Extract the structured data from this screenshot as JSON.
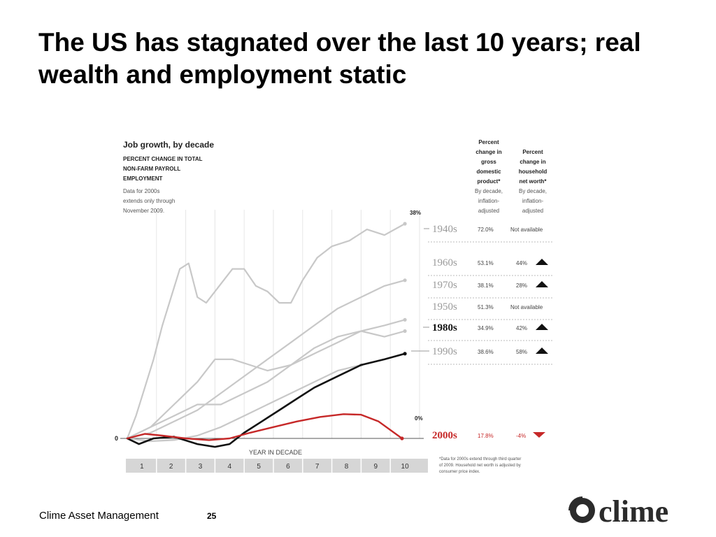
{
  "slide": {
    "title": "The US has stagnated over the last 10 years; real wealth and employment static",
    "footer": "Clime Asset Management",
    "page_number": "25",
    "logo_text": "clime"
  },
  "chart_data": {
    "type": "line",
    "title": "Job growth, by decade",
    "subtitle_lines": [
      "PERCENT CHANGE IN TOTAL",
      "NON-FARM PAYROLL",
      "EMPLOYMENT"
    ],
    "note_lines": [
      "Data for 2000s",
      "extends only through",
      "November 2009."
    ],
    "xlabel": "YEAR IN DECADE",
    "x_ticks": [
      "1",
      "2",
      "3",
      "4",
      "5",
      "6",
      "7",
      "8",
      "9",
      "10"
    ],
    "y_zero_label": "0",
    "ylim": [
      -2,
      42
    ],
    "end_labels": {
      "top": "38%",
      "bottom": "0%"
    },
    "column_headers": {
      "gdp": [
        "Percent",
        "change in",
        "gross",
        "domestic",
        "product*"
      ],
      "gdp_sub": [
        "By decade,",
        "inflation-",
        "adjusted"
      ],
      "networth": [
        "Percent",
        "change in",
        "household",
        "net worth*"
      ],
      "networth_sub": [
        "By decade,",
        "inflation-",
        "adjusted"
      ]
    },
    "footnote_lines": [
      "*Data for 2000s extend through third quarter",
      "of 2009. Household net worth is adjusted by",
      "consumer price index."
    ],
    "colors": {
      "gray": "#c8c8c8",
      "black": "#111111",
      "red": "#c62828",
      "label_gray": "#9a9a9a"
    },
    "series": [
      {
        "name": "1940s",
        "gdp": "72.0%",
        "networth": "Not available",
        "trend": "none",
        "values": [
          0,
          4,
          9,
          14,
          20,
          25,
          30,
          31,
          25,
          24,
          26,
          28,
          30,
          30,
          27,
          26,
          24,
          24,
          28,
          32,
          34,
          35,
          37,
          36,
          38
        ],
        "x": [
          0,
          0.3,
          0.6,
          0.9,
          1.2,
          1.5,
          1.8,
          2.1,
          2.4,
          2.7,
          3.0,
          3.3,
          3.6,
          4.0,
          4.4,
          4.8,
          5.2,
          5.6,
          6.0,
          6.5,
          7.0,
          7.6,
          8.2,
          8.8,
          9.5
        ]
      },
      {
        "name": "1960s",
        "gdp": "53.1%",
        "networth": "44%",
        "trend": "up",
        "values": [
          0,
          1,
          3,
          5,
          8,
          11,
          14,
          17,
          20,
          23,
          25,
          27,
          28
        ],
        "x": [
          0,
          0.8,
          1.6,
          2.4,
          3.2,
          4.0,
          4.8,
          5.6,
          6.4,
          7.2,
          8.0,
          8.8,
          9.5
        ]
      },
      {
        "name": "1970s",
        "gdp": "38.1%",
        "networth": "28%",
        "trend": "up",
        "values": [
          0,
          2,
          4,
          6,
          6,
          8,
          10,
          13,
          16,
          18,
          19,
          20,
          21
        ],
        "x": [
          0,
          0.8,
          1.6,
          2.4,
          3.2,
          4.0,
          4.8,
          5.6,
          6.4,
          7.2,
          8.0,
          8.8,
          9.5
        ]
      },
      {
        "name": "1950s",
        "gdp": "51.3%",
        "networth": "Not available",
        "trend": "none",
        "values": [
          0,
          2,
          6,
          10,
          14,
          14,
          13,
          12,
          13,
          15,
          17,
          19,
          18,
          19
        ],
        "x": [
          0,
          0.8,
          1.6,
          2.4,
          3.0,
          3.6,
          4.2,
          4.8,
          5.6,
          6.4,
          7.2,
          8.0,
          8.8,
          9.5
        ]
      },
      {
        "name": "1980s",
        "gdp": "34.9%",
        "networth": "42%",
        "trend": "up",
        "highlight": "black",
        "values": [
          0,
          -1,
          0,
          0.3,
          -1,
          -1.5,
          -1,
          1,
          3,
          5,
          7,
          9,
          11,
          13,
          14,
          15
        ],
        "x": [
          0,
          0.4,
          0.9,
          1.6,
          2.4,
          3.0,
          3.5,
          4.0,
          4.6,
          5.2,
          5.8,
          6.4,
          7.2,
          8.0,
          8.8,
          9.5
        ]
      },
      {
        "name": "1990s",
        "gdp": "38.6%",
        "networth": "58%",
        "trend": "up",
        "values": [
          0,
          -0.5,
          -0.3,
          0.5,
          2,
          4,
          6,
          8,
          10,
          12,
          13
        ],
        "x": [
          0,
          0.8,
          1.6,
          2.4,
          3.2,
          4.0,
          4.8,
          5.6,
          6.4,
          7.2,
          8.0
        ]
      },
      {
        "name": "2000s",
        "gdp": "17.8%",
        "networth": "-4%",
        "trend": "down",
        "highlight": "red",
        "values": [
          0,
          0.8,
          0.5,
          0,
          -0.3,
          0,
          1,
          2,
          3,
          3.8,
          4.3,
          4.2,
          3,
          0
        ],
        "x": [
          0,
          0.6,
          1.2,
          2.0,
          2.8,
          3.5,
          4.2,
          5.0,
          5.8,
          6.6,
          7.4,
          8.0,
          8.6,
          9.4
        ]
      }
    ]
  }
}
